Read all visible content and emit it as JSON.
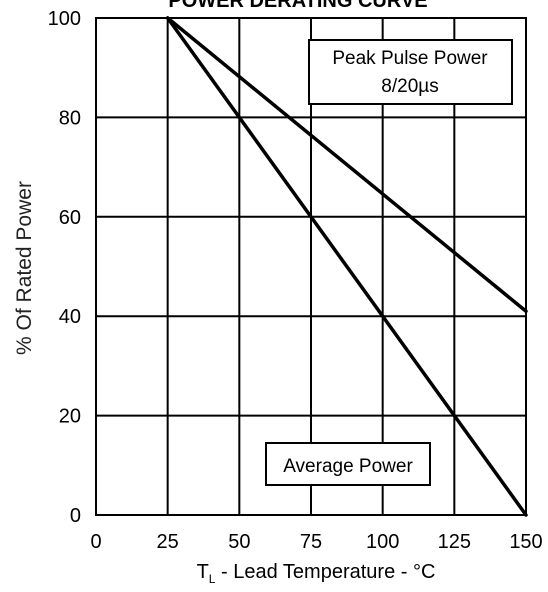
{
  "chart_data": {
    "type": "line",
    "title": "POWER DERATING CURVE",
    "xlabel_main": "T",
    "xlabel_sub": "L",
    "xlabel_rest": " - Lead Temperature - °C",
    "ylabel": "% Of Rated Power",
    "xlim": [
      0,
      150
    ],
    "ylim": [
      0,
      100
    ],
    "xticks": [
      "0",
      "25",
      "50",
      "75",
      "100",
      "125",
      "150"
    ],
    "yticks": [
      "0",
      "20",
      "40",
      "60",
      "80",
      "100"
    ],
    "grid": true,
    "series": [
      {
        "name": "Peak Pulse Power",
        "x": [
          25,
          150
        ],
        "y": [
          100,
          41
        ]
      },
      {
        "name": "Average Power",
        "x": [
          25,
          150
        ],
        "y": [
          100,
          0
        ]
      }
    ],
    "annotations": {
      "peak_line1": "Peak Pulse Power",
      "peak_line2": "8/20µs",
      "average": "Average Power"
    }
  }
}
